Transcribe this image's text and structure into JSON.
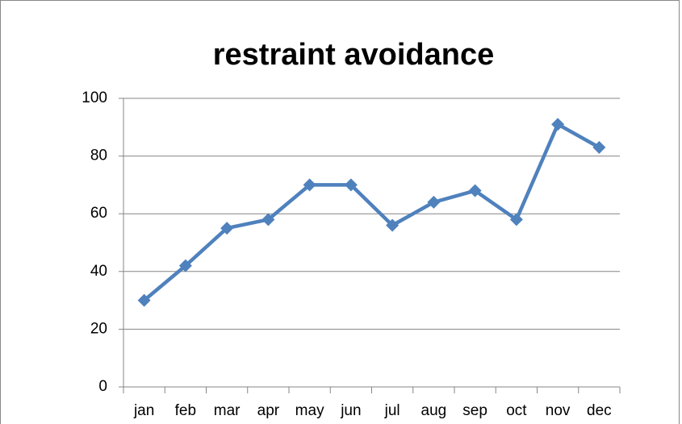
{
  "chart_data": {
    "type": "line",
    "title": "restraint avoidance",
    "categories": [
      "jan",
      "feb",
      "mar",
      "apr",
      "may",
      "jun",
      "jul",
      "aug",
      "sep",
      "oct",
      "nov",
      "dec"
    ],
    "series": [
      {
        "name": "restraint avoidance",
        "color": "#4f81bd",
        "values": [
          30,
          42,
          55,
          58,
          70,
          70,
          56,
          64,
          68,
          58,
          91,
          83
        ]
      }
    ],
    "ylim": [
      0,
      100
    ],
    "yticks": [
      0,
      20,
      40,
      60,
      80,
      100
    ],
    "grid": true
  }
}
